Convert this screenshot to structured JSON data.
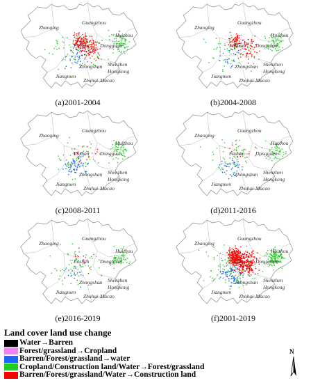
{
  "panels": [
    {
      "caption": "(a)2001-2004",
      "dots": {
        "red": 190,
        "green": 150,
        "blue": 30,
        "pink": 15,
        "black": 5
      }
    },
    {
      "caption": "(b)2004-2008",
      "dots": {
        "red": 120,
        "green": 120,
        "blue": 20,
        "pink": 10,
        "black": 3
      }
    },
    {
      "caption": "(c)2008-2011",
      "dots": {
        "red": 15,
        "green": 100,
        "blue": 60,
        "pink": 5,
        "black": 2
      }
    },
    {
      "caption": "(d)2011-2016",
      "dots": {
        "red": 10,
        "green": 110,
        "blue": 40,
        "pink": 3,
        "black": 2
      }
    },
    {
      "caption": "(e)2016-2019",
      "dots": {
        "red": 12,
        "green": 120,
        "blue": 15,
        "pink": 3,
        "black": 1
      }
    },
    {
      "caption": "(f)2001-2019",
      "dots": {
        "red": 420,
        "green": 260,
        "blue": 70,
        "pink": 20,
        "black": 8
      }
    }
  ],
  "cities": [
    "Zhaoqing",
    "Guangzhou",
    "Huizhou",
    "Foshan",
    "Dongguan",
    "Shenzhen",
    "Zhongshan",
    "Hongkong",
    "Jiangmen",
    "Zhuhai",
    "Macao"
  ],
  "legend": {
    "title": "Land cover land use change",
    "items": [
      {
        "label": "Water→Barren",
        "color": "#000000"
      },
      {
        "label": "Forest/grassland→Cropland",
        "color": "#ee82ee"
      },
      {
        "label": "Barren/Forest/grassland→water",
        "color": "#1e64ff"
      },
      {
        "label": "Cropland/Construction land/Water→Forest/grassland",
        "color": "#22cc22"
      },
      {
        "label": "Barren/Forest/grassland/Water→Construction land",
        "color": "#ff0000"
      }
    ]
  },
  "north_arrow": {
    "label": "N"
  }
}
